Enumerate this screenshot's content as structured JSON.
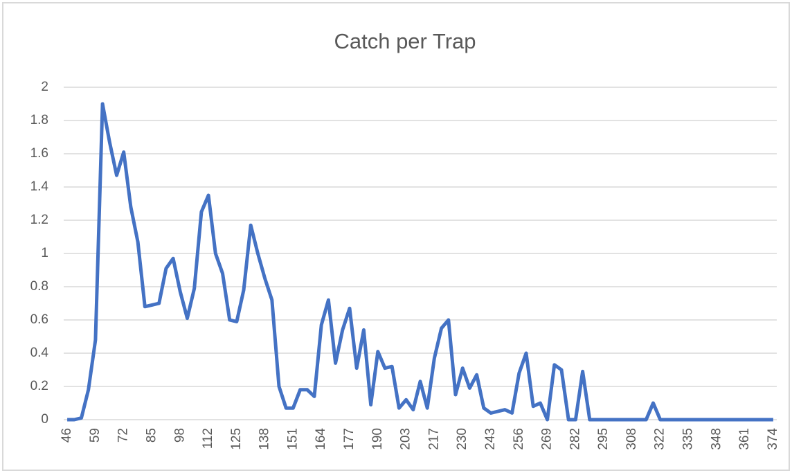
{
  "chart_data": {
    "type": "line",
    "title": "Catch per Trap",
    "categories": [
      46,
      null,
      null,
      null,
      59,
      null,
      null,
      null,
      72,
      null,
      null,
      null,
      85,
      null,
      null,
      null,
      98,
      null,
      null,
      null,
      112,
      null,
      null,
      null,
      125,
      null,
      null,
      null,
      138,
      null,
      null,
      null,
      151,
      null,
      null,
      null,
      164,
      null,
      null,
      null,
      177,
      null,
      null,
      null,
      190,
      null,
      null,
      null,
      203,
      null,
      null,
      null,
      217,
      null,
      null,
      null,
      230,
      null,
      null,
      null,
      243,
      null,
      null,
      null,
      256,
      null,
      null,
      null,
      269,
      null,
      null,
      null,
      282,
      null,
      null,
      null,
      295,
      null,
      null,
      null,
      308,
      null,
      null,
      null,
      322,
      null,
      null,
      null,
      335,
      null,
      null,
      null,
      348,
      null,
      null,
      null,
      361,
      null,
      null,
      null,
      374
    ],
    "values": [
      0,
      0,
      0.01,
      0.18,
      0.48,
      1.9,
      1.67,
      1.47,
      1.61,
      1.28,
      1.07,
      0.68,
      0.69,
      0.7,
      0.91,
      0.97,
      0.77,
      0.61,
      0.79,
      1.25,
      1.35,
      1.0,
      0.88,
      0.6,
      0.59,
      0.78,
      1.17,
      1.0,
      0.85,
      0.72,
      0.2,
      0.07,
      0.07,
      0.18,
      0.18,
      0.14,
      0.57,
      0.72,
      0.34,
      0.54,
      0.67,
      0.31,
      0.54,
      0.09,
      0.41,
      0.31,
      0.32,
      0.07,
      0.12,
      0.06,
      0.23,
      0.07,
      0.37,
      0.55,
      0.6,
      0.15,
      0.31,
      0.19,
      0.27,
      0.07,
      0.04,
      0.05,
      0.06,
      0.04,
      0.28,
      0.4,
      0.08,
      0.1,
      0,
      0.33,
      0.3,
      0,
      0,
      0.29,
      0,
      0,
      0,
      0,
      0,
      0,
      0,
      0,
      0,
      0.1,
      0,
      0,
      0,
      0,
      0,
      0,
      0,
      0,
      0,
      0,
      0,
      0,
      0,
      0,
      0,
      0,
      0
    ],
    "color": "#4472c4",
    "ylim": [
      0,
      2
    ],
    "yticks": [
      0,
      0.2,
      0.4,
      0.6,
      0.8,
      1,
      1.2,
      1.4,
      1.6,
      1.8,
      2
    ],
    "grid": true
  }
}
